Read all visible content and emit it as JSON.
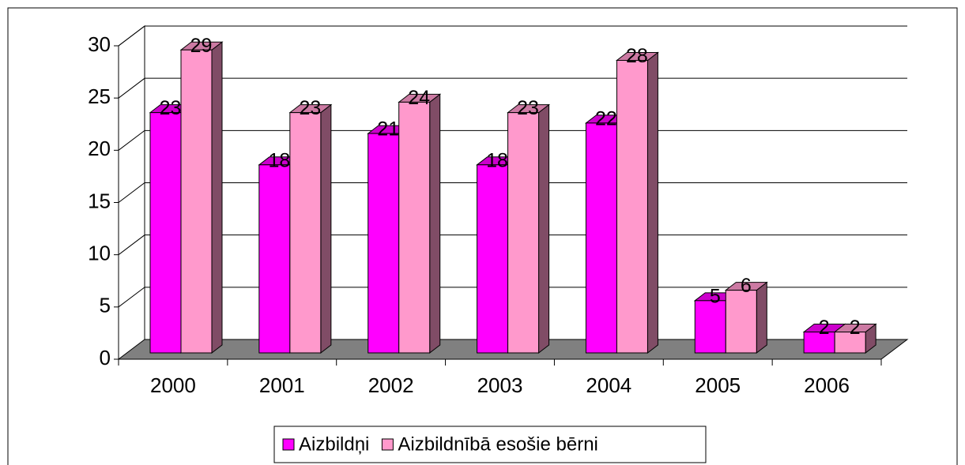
{
  "chart_data": {
    "type": "bar3d",
    "categories": [
      "2000",
      "2001",
      "2002",
      "2003",
      "2004",
      "2005",
      "2006"
    ],
    "series": [
      {
        "name": "Aizbildņi",
        "color": "#ff00ff",
        "values": [
          23,
          18,
          21,
          18,
          22,
          5,
          2
        ]
      },
      {
        "name": "Aizbildnībā esošie bērni",
        "color": "#ff99cc",
        "values": [
          29,
          23,
          24,
          23,
          28,
          6,
          2
        ]
      }
    ],
    "ylim": [
      0,
      30
    ],
    "yticks": [
      0,
      5,
      10,
      15,
      20,
      25,
      30
    ],
    "grid": true,
    "legend": "bottom"
  }
}
